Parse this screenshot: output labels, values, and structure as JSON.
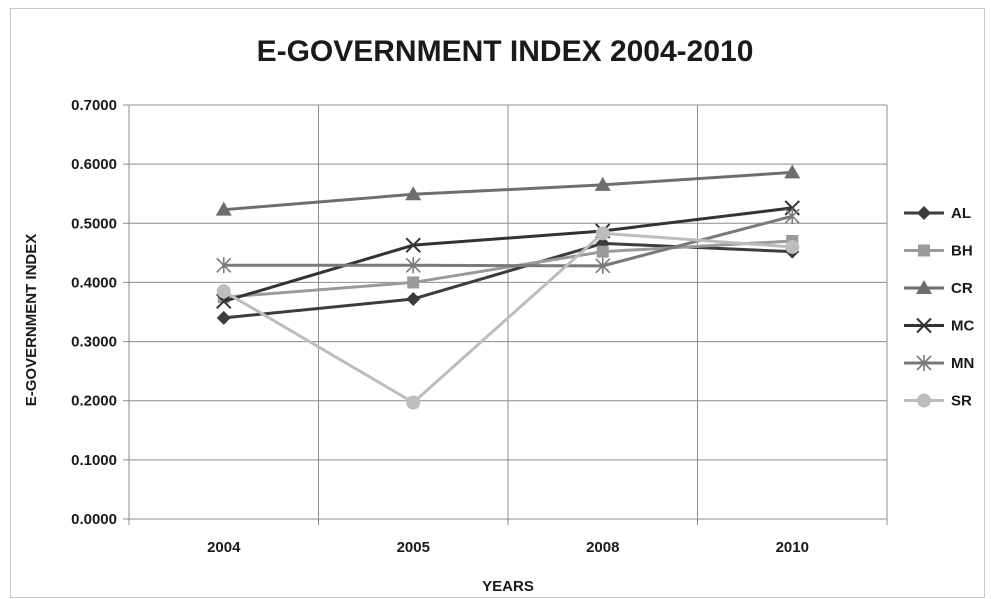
{
  "chart_data": {
    "type": "line",
    "title": "E-GOVERNMENT INDEX 2004-2010",
    "xlabel": "YEARS",
    "ylabel": "E-GOVERNMENT INDEX",
    "categories": [
      "2004",
      "2005",
      "2008",
      "2010"
    ],
    "ylim": [
      0,
      0.7
    ],
    "yticks": [
      "0.0000",
      "0.1000",
      "0.2000",
      "0.3000",
      "0.4000",
      "0.5000",
      "0.6000",
      "0.7000"
    ],
    "grid": true,
    "legend_position": "right",
    "series": [
      {
        "name": "AL",
        "values": [
          0.34,
          0.372,
          0.466,
          0.452
        ],
        "color": "#3c3c3c",
        "marker": "diamond"
      },
      {
        "name": "BH",
        "values": [
          0.375,
          0.4,
          0.452,
          0.47
        ],
        "color": "#9a9a9a",
        "marker": "square"
      },
      {
        "name": "CR",
        "values": [
          0.523,
          0.549,
          0.565,
          0.586
        ],
        "color": "#6e6e6e",
        "marker": "triangle"
      },
      {
        "name": "MC",
        "values": [
          0.368,
          0.463,
          0.487,
          0.526
        ],
        "color": "#333333",
        "marker": "x"
      },
      {
        "name": "MN",
        "values": [
          0.429,
          0.429,
          0.428,
          0.512
        ],
        "color": "#7a7a7a",
        "marker": "star"
      },
      {
        "name": "SR",
        "values": [
          0.385,
          0.197,
          0.483,
          0.46
        ],
        "color": "#bdbdbd",
        "marker": "circle"
      }
    ]
  }
}
